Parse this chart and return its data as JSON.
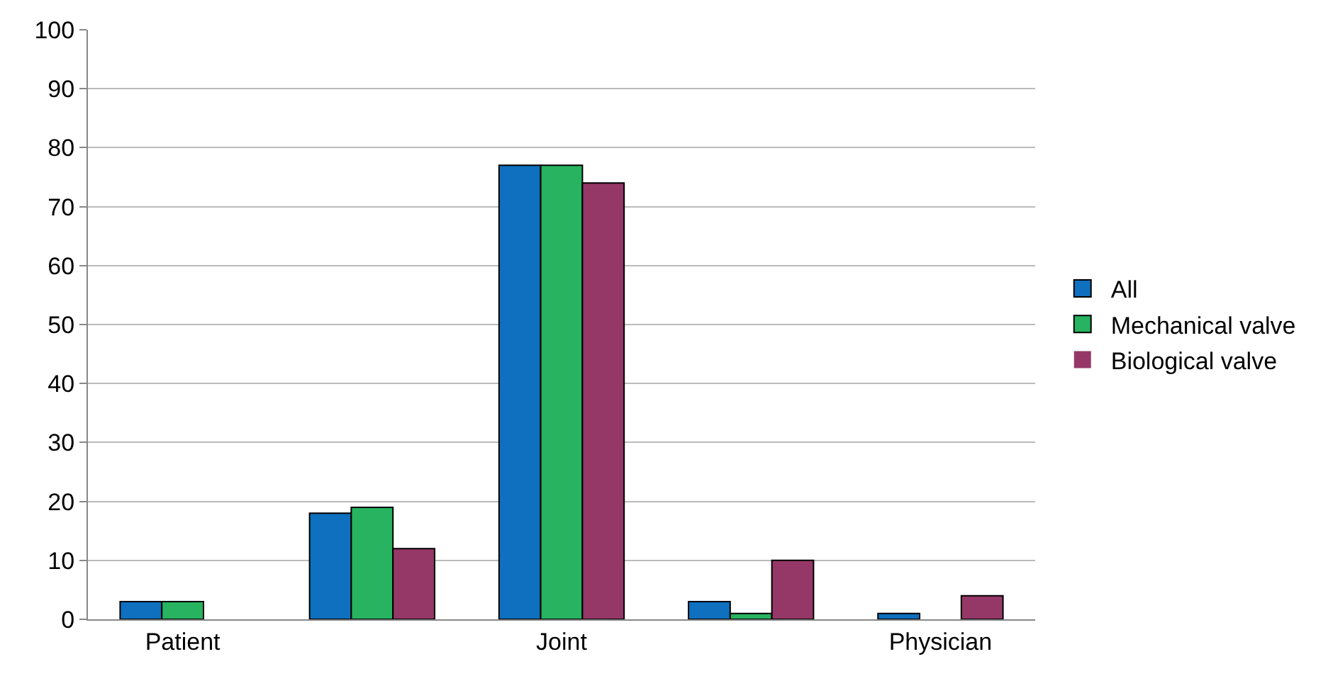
{
  "chart_data": {
    "type": "bar",
    "categories": [
      "Patient",
      null,
      "Joint",
      null,
      "Physician"
    ],
    "series": [
      {
        "name": "All",
        "color": "#0e70be",
        "values": [
          3,
          18,
          77,
          3,
          1
        ]
      },
      {
        "name": "Mechanical valve",
        "color": "#27b35f",
        "values": [
          3,
          19,
          77,
          1,
          0
        ]
      },
      {
        "name": "Biological valve",
        "color": "#953867",
        "values": [
          0,
          12,
          74,
          10,
          4
        ]
      }
    ],
    "ylim": [
      0,
      100
    ],
    "yticks": [
      0,
      10,
      20,
      30,
      40,
      50,
      60,
      70,
      80,
      90,
      100
    ],
    "grid": "y",
    "legend": "right"
  }
}
